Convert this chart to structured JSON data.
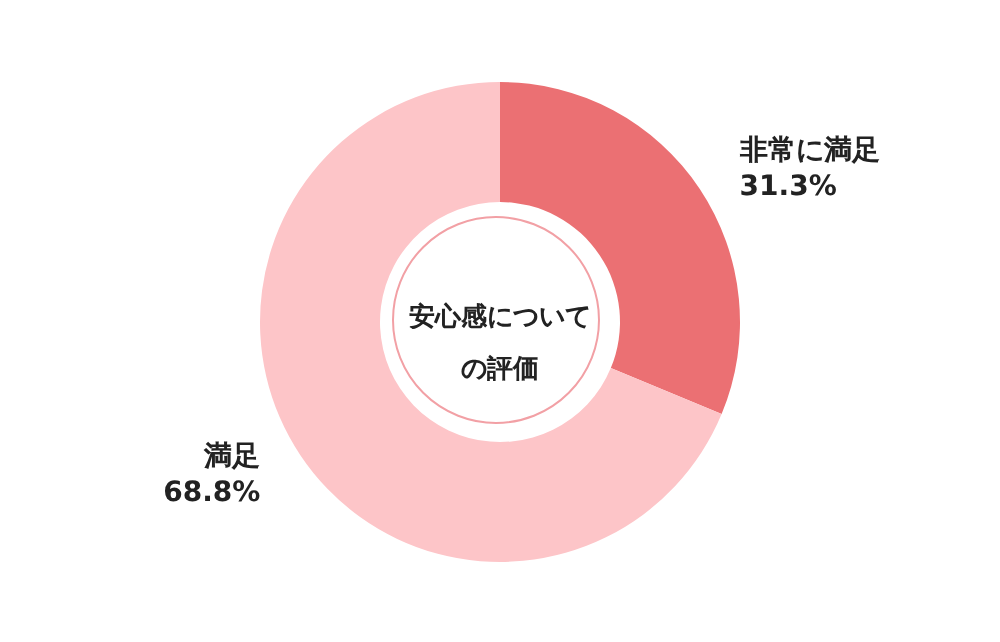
{
  "chart_data": {
    "type": "donut",
    "title": "安心感についての評価",
    "categories": [
      "非常に満足",
      "満足"
    ],
    "values": [
      31.3,
      68.8
    ],
    "value_labels": [
      "31.3%",
      "68.8%"
    ],
    "colors": [
      "#eb7073",
      "#fdc5c8"
    ],
    "legend": false
  }
}
